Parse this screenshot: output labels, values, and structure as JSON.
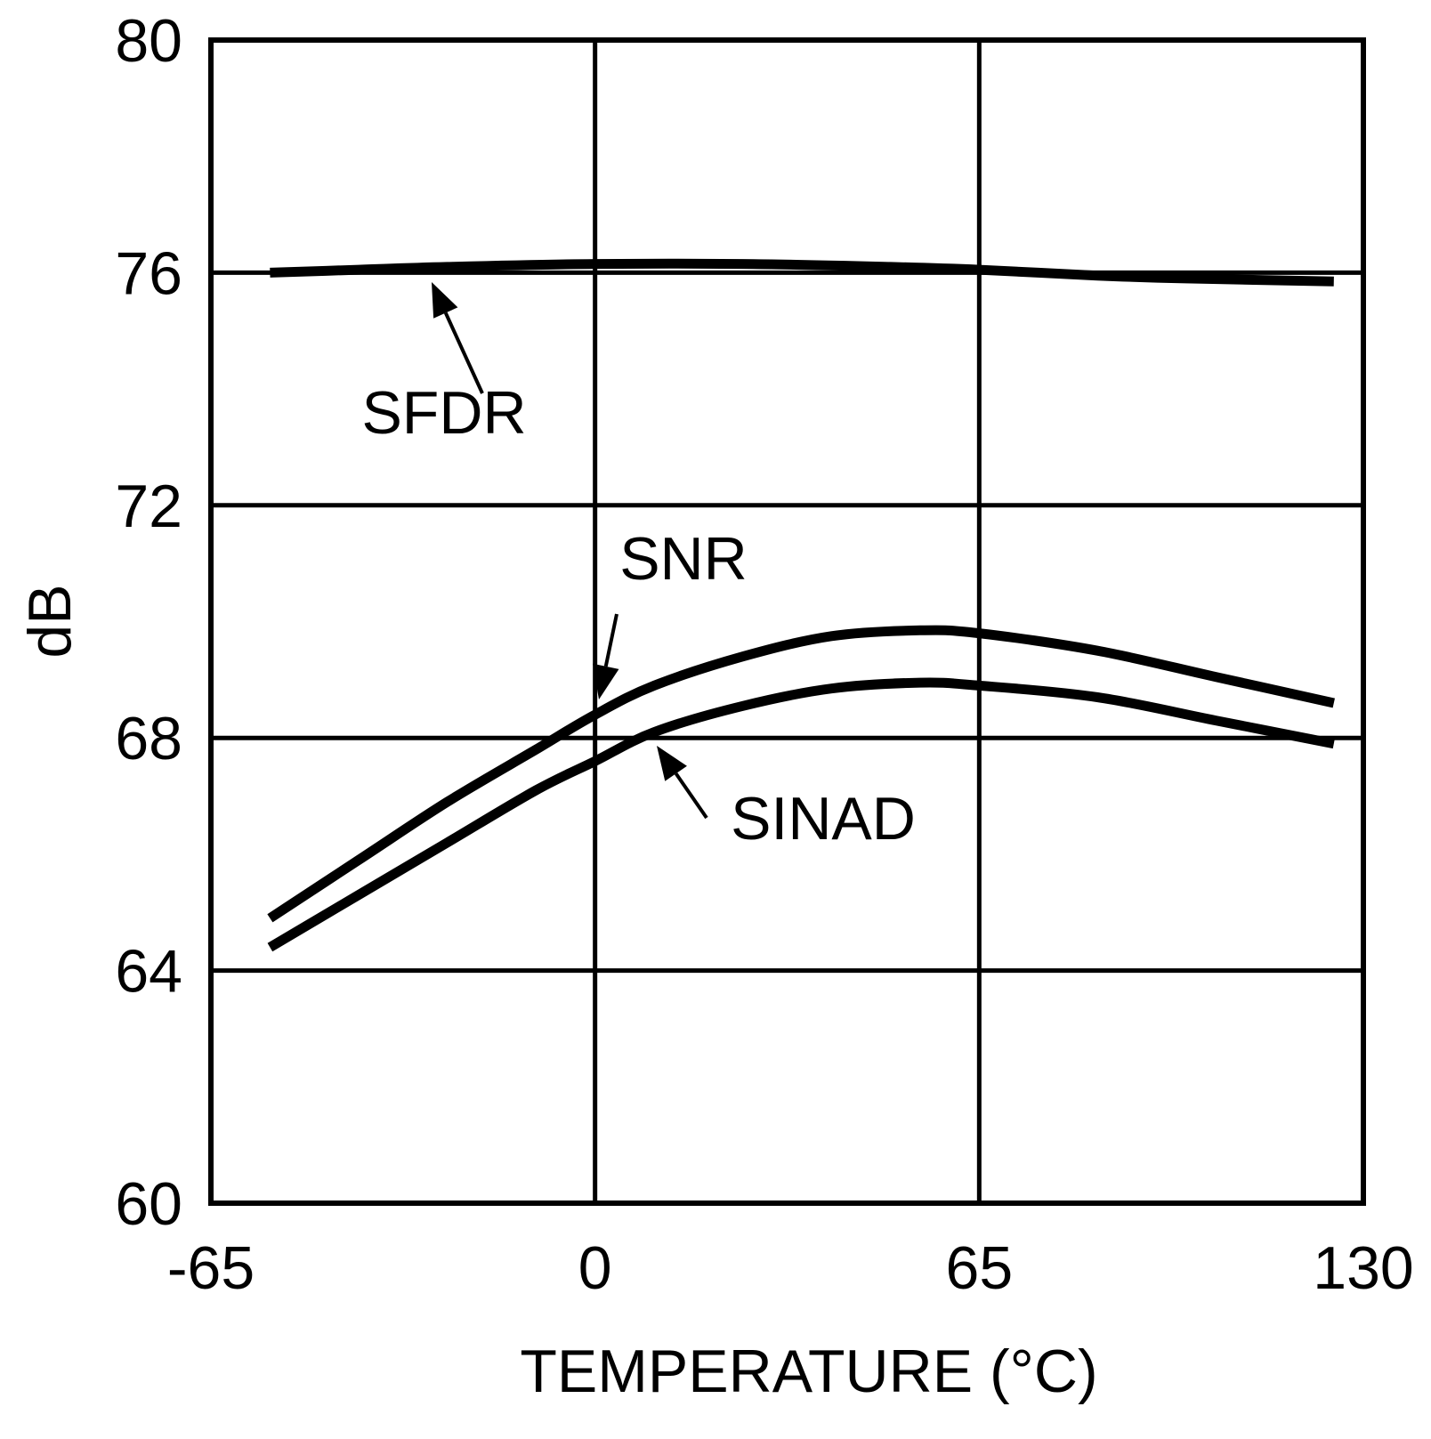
{
  "chart_data": {
    "type": "line",
    "title": "",
    "xlabel": "TEMPERATURE (°C)",
    "ylabel": "dB",
    "xlim": [
      -65,
      130
    ],
    "ylim": [
      60,
      80
    ],
    "xticks": [
      -65,
      0,
      65,
      130
    ],
    "yticks": [
      60,
      64,
      68,
      72,
      76,
      80
    ],
    "xtick_labels": [
      "-65",
      "0",
      "65",
      "130"
    ],
    "ytick_labels": [
      "60",
      "64",
      "68",
      "72",
      "76",
      "80"
    ],
    "grid": true,
    "series": [
      {
        "name": "SFDR",
        "x": [
          -55,
          -40,
          -25,
          0,
          25,
          50,
          65,
          85,
          100,
          125
        ],
        "values": [
          76.0,
          76.05,
          76.1,
          76.15,
          76.15,
          76.1,
          76.05,
          75.95,
          75.9,
          75.85
        ]
      },
      {
        "name": "SNR",
        "x": [
          -55,
          -40,
          -25,
          -10,
          0,
          10,
          25,
          40,
          55,
          65,
          85,
          105,
          125
        ],
        "values": [
          64.9,
          65.9,
          66.9,
          67.8,
          68.4,
          68.9,
          69.4,
          69.75,
          69.85,
          69.8,
          69.5,
          69.05,
          68.6
        ]
      },
      {
        "name": "SINAD",
        "x": [
          -55,
          -40,
          -25,
          -10,
          0,
          10,
          25,
          40,
          55,
          65,
          85,
          105,
          125
        ],
        "values": [
          64.4,
          65.3,
          66.2,
          67.1,
          67.6,
          68.1,
          68.55,
          68.85,
          68.95,
          68.9,
          68.7,
          68.3,
          67.9
        ]
      }
    ],
    "annotations": [
      {
        "text": "SFDR",
        "series": "SFDR",
        "points_at": [
          -29,
          76.05
        ]
      },
      {
        "text": "SNR",
        "series": "SNR",
        "points_at": [
          0,
          68.5
        ]
      },
      {
        "text": "SINAD",
        "series": "SINAD",
        "points_at": [
          9,
          67.9
        ]
      }
    ]
  }
}
